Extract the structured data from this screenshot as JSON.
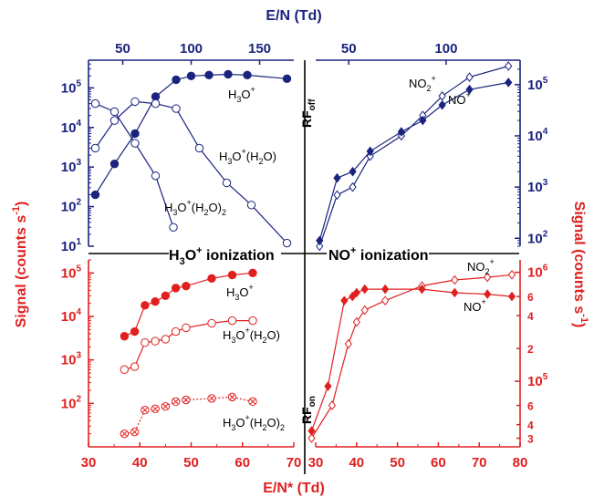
{
  "colors": {
    "blue": "#1a237e",
    "red": "#e02020",
    "black": "#000000"
  },
  "labels": {
    "top_axis_title": "E/N (Td)",
    "bottom_axis_title": "E/N* (Td)",
    "left_axis_title": "Signal (counts s",
    "left_axis_sup": "-1",
    "left_axis_close": ")",
    "right_axis_title": "Signal (counts s",
    "right_axis_sup": "-1",
    "right_axis_close": ")",
    "h3o_ion_pre": "H",
    "h3o_ion_sub": "3",
    "h3o_ion_o": "O",
    "h3o_ion_sup": "+",
    "h3o_ion_rest": " ionization",
    "no_ion_pre": "NO",
    "no_ion_sup": "+",
    "no_ion_rest": " ionization",
    "rf_off_main": "RF",
    "rf_off_sub": "off",
    "rf_on_main": "RF",
    "rf_on_sub": "on"
  },
  "chart_data": [
    {
      "id": "top_left",
      "type": "line",
      "panel": "H3O+ ionization, RF off",
      "xlabel": "E/N (Td)",
      "xlim": [
        25,
        175
      ],
      "xticks": [
        50,
        100,
        150
      ],
      "ylim": [
        10,
        500000
      ],
      "yscale": "log",
      "yticks": [
        "10^1",
        "10^2",
        "10^3",
        "10^4",
        "10^5"
      ],
      "series": [
        {
          "name": "H3O+",
          "label": [
            "H",
            "3",
            "O",
            "+",
            ""
          ],
          "marker": "filled-circle",
          "x": [
            30,
            44,
            59,
            74,
            89,
            100,
            113,
            127,
            141,
            170
          ],
          "y": [
            200,
            1200,
            7000,
            60000,
            160000,
            200000,
            210000,
            220000,
            210000,
            170000
          ]
        },
        {
          "name": "H3O+(H2O)",
          "label": [
            "H",
            "3",
            "O",
            "+",
            "(H",
            "2",
            "O)"
          ],
          "marker": "open-circle",
          "x": [
            30,
            44,
            59,
            74,
            89,
            106,
            126,
            144,
            170
          ],
          "y": [
            3000,
            15000,
            45000,
            40000,
            30000,
            3000,
            400,
            110,
            12
          ]
        },
        {
          "name": "H3O+(H2O)2",
          "label": [
            "H",
            "3",
            "O",
            "+",
            "(H",
            "2",
            "O)",
            "2"
          ],
          "marker": "open-circle",
          "x": [
            30,
            44,
            59,
            74,
            87
          ],
          "y": [
            40000,
            25000,
            4000,
            600,
            30
          ]
        }
      ]
    },
    {
      "id": "top_right",
      "type": "line",
      "panel": "NO+ ionization, RF off",
      "xlabel": "E/N (Td)",
      "xlim": [
        33,
        138
      ],
      "xticks": [
        50,
        100
      ],
      "ylim": [
        70,
        300000
      ],
      "yscale": "log",
      "yticks": [
        "10^2",
        "10^3",
        "10^4",
        "10^5"
      ],
      "series": [
        {
          "name": "NO2+",
          "label": [
            "NO",
            "2",
            "+"
          ],
          "marker": "open-diamond",
          "x": [
            35,
            44,
            52,
            61,
            77,
            88,
            98,
            112,
            132
          ],
          "y": [
            70,
            700,
            1000,
            4000,
            10000,
            25000,
            60000,
            140000,
            230000
          ]
        },
        {
          "name": "NO+",
          "label": [
            "NO",
            "+",
            ""
          ],
          "marker": "filled-diamond",
          "x": [
            35,
            44,
            52,
            61,
            77,
            88,
            98,
            112,
            132
          ],
          "y": [
            90,
            1500,
            2000,
            5000,
            12000,
            20000,
            40000,
            80000,
            110000
          ]
        }
      ]
    },
    {
      "id": "bottom_left",
      "type": "line",
      "panel": "H3O+ ionization, RF on",
      "xlabel": "E/N* (Td)",
      "xlim": [
        30,
        70
      ],
      "xticks": [
        30,
        40,
        50,
        60,
        70
      ],
      "ylim": [
        10,
        200000
      ],
      "yscale": "log",
      "yticks": [
        "10^2",
        "10^3",
        "10^4",
        "10^5"
      ],
      "series": [
        {
          "name": "H3O+",
          "label": [
            "H",
            "3",
            "O",
            "+",
            ""
          ],
          "marker": "filled-circle",
          "x": [
            37,
            39,
            41,
            43,
            45,
            47,
            49,
            54,
            58,
            62
          ],
          "y": [
            3500,
            4500,
            18000,
            22000,
            30000,
            45000,
            50000,
            75000,
            90000,
            100000
          ]
        },
        {
          "name": "H3O+(H2O)",
          "label": [
            "H",
            "3",
            "O",
            "+",
            "(H",
            "2",
            "O)"
          ],
          "marker": "open-circle",
          "x": [
            37,
            39,
            41,
            43,
            45,
            47,
            49,
            54,
            58,
            62
          ],
          "y": [
            600,
            700,
            2500,
            2700,
            3000,
            4500,
            5500,
            7000,
            8000,
            8000
          ]
        },
        {
          "name": "H3O+(H2O)2",
          "label": [
            "H",
            "3",
            "O",
            "+",
            "(H",
            "2",
            "O)",
            "2"
          ],
          "marker": "open-circle-x",
          "dotted": true,
          "x": [
            37,
            39,
            41,
            43,
            45,
            47,
            49,
            54,
            58,
            62
          ],
          "y": [
            20,
            22,
            70,
            75,
            85,
            110,
            120,
            130,
            140,
            110
          ]
        }
      ]
    },
    {
      "id": "bottom_right",
      "type": "line",
      "panel": "NO+ ionization, RF on",
      "xlabel": "E/N* (Td)",
      "xlim": [
        30,
        80
      ],
      "xticks": [
        30,
        40,
        50,
        60,
        70,
        80
      ],
      "ylim": [
        25000,
        1300000
      ],
      "yscale": "log",
      "yticks": [
        "3",
        "4",
        "6",
        "10^5",
        "2",
        "4",
        "6",
        "10^6"
      ],
      "series": [
        {
          "name": "NO2+",
          "label": [
            "NO",
            "2",
            "+"
          ],
          "marker": "open-diamond",
          "x": [
            29,
            34,
            38,
            40,
            42,
            47,
            56,
            64,
            72,
            78
          ],
          "y": [
            30000,
            60000,
            220000,
            350000,
            450000,
            550000,
            750000,
            850000,
            900000,
            950000
          ]
        },
        {
          "name": "NO+",
          "label": [
            "NO",
            "+",
            ""
          ],
          "marker": "filled-diamond",
          "x": [
            29,
            33,
            37,
            39,
            40,
            42,
            47,
            56,
            64,
            72,
            78
          ],
          "y": [
            35000,
            90000,
            550000,
            600000,
            650000,
            700000,
            700000,
            700000,
            650000,
            630000,
            600000
          ]
        }
      ]
    }
  ]
}
